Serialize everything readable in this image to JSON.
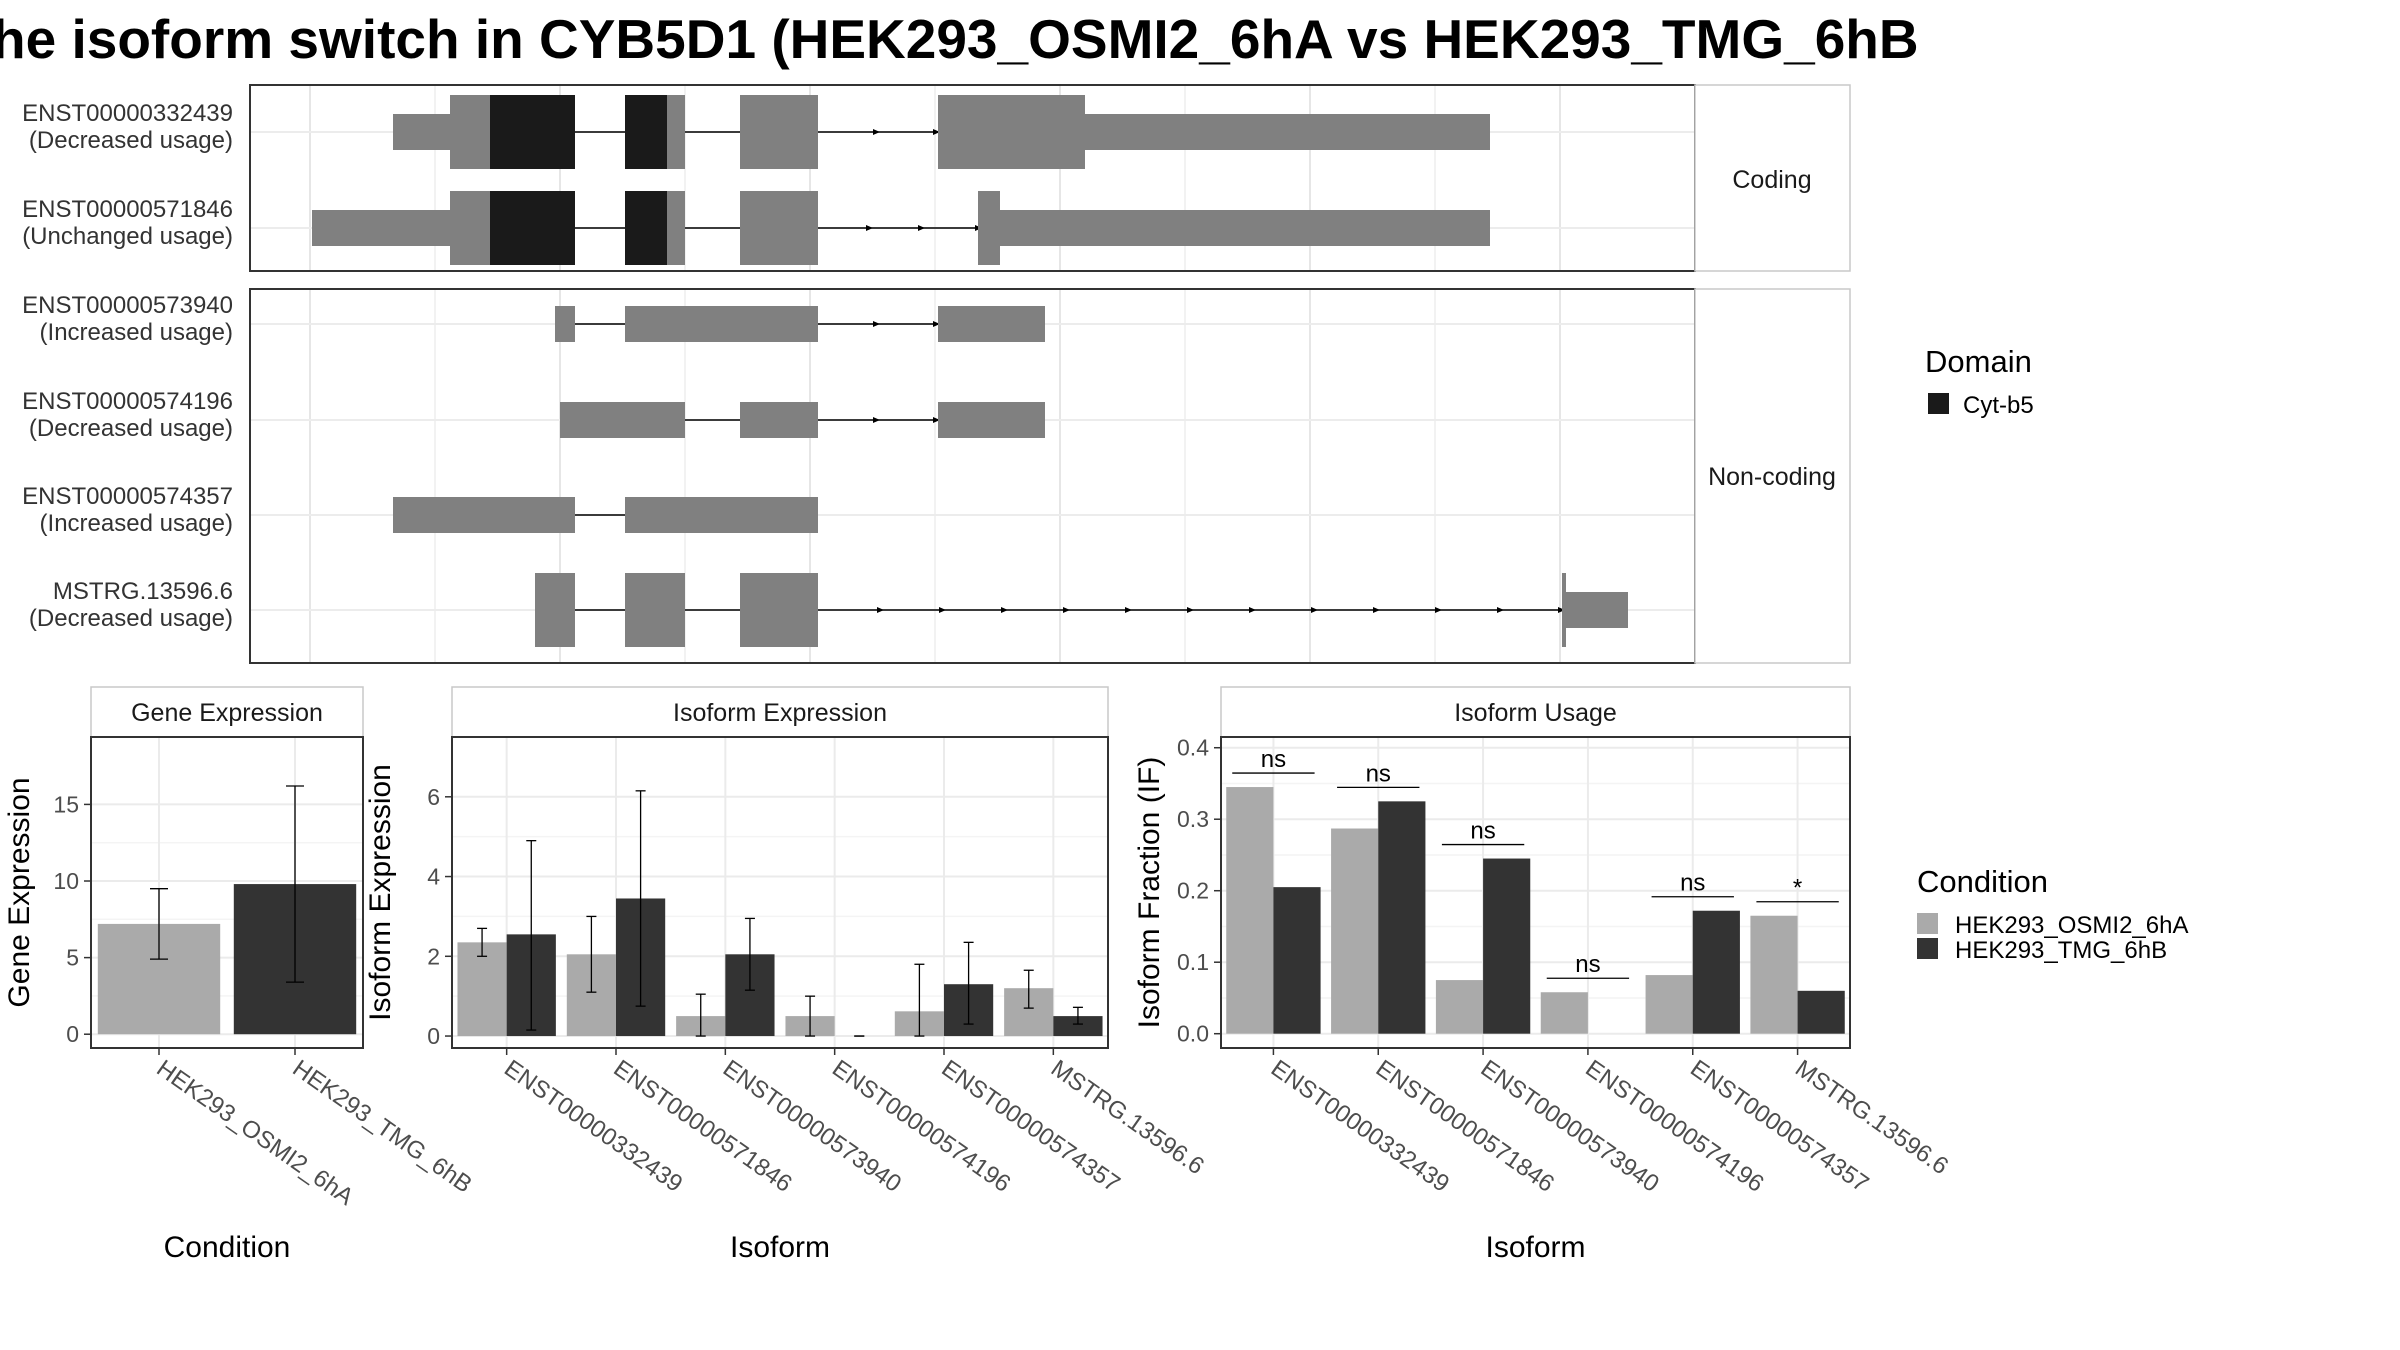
{
  "title": "he isoform switch in CYB5D1 (HEK293_OSMI2_6hA vs HEK293_TMG_6hB",
  "colors": {
    "exon": "#808080",
    "domain": "#1a1a1a",
    "cond1": "#aaaaaa",
    "cond2": "#333333",
    "grid": "#ebebeb",
    "strip_bg": "#ffffff",
    "strip_border": "#c8c8c8"
  },
  "legend_domain": {
    "title": "Domain",
    "items": [
      "Cyt-b5"
    ]
  },
  "legend_condition": {
    "title": "Condition",
    "items": [
      "HEK293_OSMI2_6hA",
      "HEK293_TMG_6hB"
    ]
  },
  "chart_data": [
    {
      "type": "gene-structure",
      "facets": [
        "Coding",
        "Non-coding"
      ],
      "transcripts": [
        {
          "id": "ENST00000332439",
          "usage": "(Decreased usage)",
          "facet": "Coding"
        },
        {
          "id": "ENST00000571846",
          "usage": "(Unchanged usage)",
          "facet": "Coding"
        },
        {
          "id": "ENST00000573940",
          "usage": "(Increased usage)",
          "facet": "Non-coding"
        },
        {
          "id": "ENST00000574196",
          "usage": "(Decreased usage)",
          "facet": "Non-coding"
        },
        {
          "id": "ENST00000574357",
          "usage": "(Increased usage)",
          "facet": "Non-coding"
        },
        {
          "id": "MSTRG.13596.6",
          "usage": "(Decreased usage)",
          "facet": "Non-coding"
        }
      ]
    },
    {
      "type": "bar",
      "strip": "Gene Expression",
      "xlabel": "Condition",
      "ylabel": "Gene Expression",
      "categories": [
        "HEK293_OSMI2_6hA",
        "HEK293_TMG_6hB"
      ],
      "values": [
        7.2,
        9.8
      ],
      "err_low": [
        4.9,
        3.4
      ],
      "err_high": [
        9.5,
        16.2
      ],
      "yticks": [
        0,
        5,
        10,
        15
      ],
      "ylim": [
        -0.9,
        19.4
      ]
    },
    {
      "type": "bar",
      "strip": "Isoform Expression",
      "xlabel": "Isoform",
      "ylabel": "Isoform Expression",
      "categories": [
        "ENST00000332439",
        "ENST00000571846",
        "ENST00000573940",
        "ENST00000574196",
        "ENST00000574357",
        "MSTRG.13596.6"
      ],
      "series": [
        {
          "name": "HEK293_OSMI2_6hA",
          "values": [
            2.35,
            2.05,
            0.5,
            0.5,
            0.62,
            1.2
          ],
          "err_low": [
            2.0,
            1.1,
            0.0,
            0.0,
            0.0,
            0.7
          ],
          "err_high": [
            2.7,
            3.0,
            1.05,
            1.0,
            1.8,
            1.65
          ]
        },
        {
          "name": "HEK293_TMG_6hB",
          "values": [
            2.55,
            3.45,
            2.05,
            0.0,
            1.3,
            0.5
          ],
          "err_low": [
            0.15,
            0.75,
            1.15,
            0.0,
            0.3,
            0.3
          ],
          "err_high": [
            4.9,
            6.15,
            2.95,
            0.0,
            2.35,
            0.72
          ]
        }
      ],
      "yticks": [
        0,
        2,
        4,
        6
      ],
      "ylim": [
        -0.3,
        7.5
      ]
    },
    {
      "type": "bar",
      "strip": "Isoform Usage",
      "xlabel": "Isoform",
      "ylabel": "Isoform Fraction (IF)",
      "categories": [
        "ENST00000332439",
        "ENST00000571846",
        "ENST00000573940",
        "ENST00000574196",
        "ENST00000574357",
        "MSTRG.13596.6"
      ],
      "series": [
        {
          "name": "HEK293_OSMI2_6hA",
          "values": [
            0.345,
            0.287,
            0.075,
            0.058,
            0.082,
            0.165
          ]
        },
        {
          "name": "HEK293_TMG_6hB",
          "values": [
            0.205,
            0.325,
            0.245,
            0.0,
            0.172,
            0.06
          ]
        }
      ],
      "significance": [
        "ns",
        "ns",
        "ns",
        "ns",
        "ns",
        "*"
      ],
      "yticks": [
        0.0,
        0.1,
        0.2,
        0.3,
        0.4
      ],
      "ylim": [
        -0.02,
        0.415
      ]
    }
  ]
}
